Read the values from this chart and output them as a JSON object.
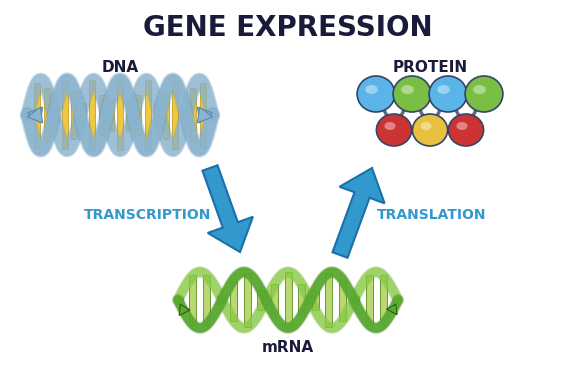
{
  "title": "GENE EXPRESSION",
  "title_fontsize": 20,
  "title_color": "#1a1a3a",
  "bg_color": "#ffffff",
  "dna_label": "DNA",
  "protein_label": "PROTEIN",
  "mrna_label": "mRNA",
  "transcription_label": "TRANSCRIPTION",
  "translation_label": "TRANSLATION",
  "arrow_label_color": "#3399cc",
  "label_fontsize": 10,
  "dna_strand_color": "#8ab4d0",
  "dna_strand_edge": "#5a8aaa",
  "dna_rung_color": "#f0c840",
  "dna_rung_edge": "#c8a020",
  "mrna_strand1_color": "#5aaa30",
  "mrna_strand2_color": "#88cc44",
  "mrna_rung_color": "#b8d870",
  "mrna_rung_edge": "#6a9830",
  "arrow_color": "#3399cc",
  "arrow_edge": "#1a70aa",
  "protein_blue": "#5ab4e8",
  "protein_green": "#7abf44",
  "protein_red": "#cc3333",
  "protein_yellow": "#e8c040",
  "protein_edge": "#334466"
}
